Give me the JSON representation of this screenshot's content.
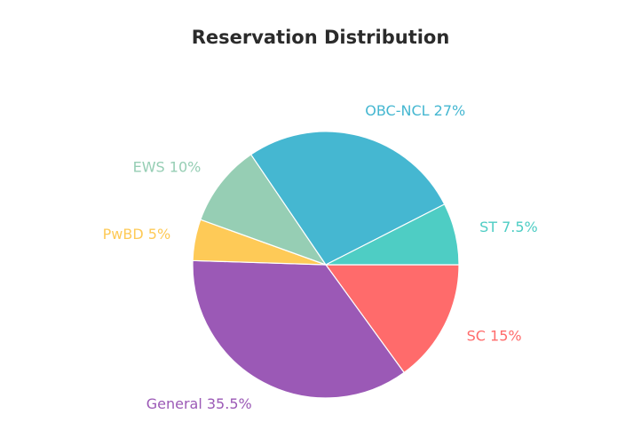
{
  "chart_data": {
    "type": "pie",
    "title": "Reservation Distribution",
    "slices": [
      {
        "name": "SC",
        "value": 15,
        "label": "SC 15%",
        "color": "#ff6b6b"
      },
      {
        "name": "General",
        "value": 35.5,
        "label": "General 35.5%",
        "color": "#9b59b6"
      },
      {
        "name": "PwBD",
        "value": 5,
        "label": "PwBD 5%",
        "color": "#feca57"
      },
      {
        "name": "EWS",
        "value": 10,
        "label": "EWS 10%",
        "color": "#96ceb4"
      },
      {
        "name": "OBC-NCL",
        "value": 27,
        "label": "OBC-NCL 27%",
        "color": "#45b7d1"
      },
      {
        "name": "ST",
        "value": 7.5,
        "label": "ST 7.5%",
        "color": "#4ecdc4"
      }
    ],
    "legend": "none"
  }
}
